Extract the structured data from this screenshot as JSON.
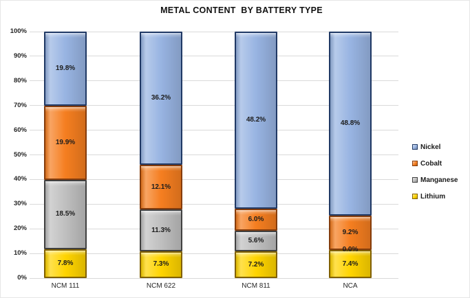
{
  "title": "METAL CONTENT  BY BATTERY TYPE",
  "chart_data": {
    "type": "bar",
    "variant": "stacked-100",
    "title": "METAL CONTENT  BY BATTERY TYPE",
    "categories": [
      "NCM 111",
      "NCM 622",
      "NCM 811",
      "NCA"
    ],
    "series": [
      {
        "name": "Lithium",
        "color": "#ffd400",
        "border": "#806000",
        "values": [
          7.8,
          7.3,
          7.2,
          7.4
        ]
      },
      {
        "name": "Manganese",
        "color": "#bfbfbf",
        "border": "#404040",
        "values": [
          18.5,
          11.3,
          5.6,
          0.0
        ]
      },
      {
        "name": "Cobalt",
        "color": "#f57e20",
        "border": "#843c0c",
        "values": [
          19.9,
          12.1,
          6.0,
          9.2
        ]
      },
      {
        "name": "Nickel",
        "color": "#98b4e2",
        "border": "#1f3864",
        "values": [
          19.8,
          36.2,
          48.2,
          48.8
        ]
      }
    ],
    "data_label_suffix": "%",
    "y_axis": {
      "ticks": [
        "0%",
        "10%",
        "20%",
        "30%",
        "40%",
        "50%",
        "60%",
        "70%",
        "80%",
        "90%",
        "100%"
      ],
      "min": 0,
      "max": 100
    },
    "legend": [
      "Nickel",
      "Cobalt",
      "Manganese",
      "Lithium"
    ],
    "legend_position": "right",
    "grid": true
  }
}
